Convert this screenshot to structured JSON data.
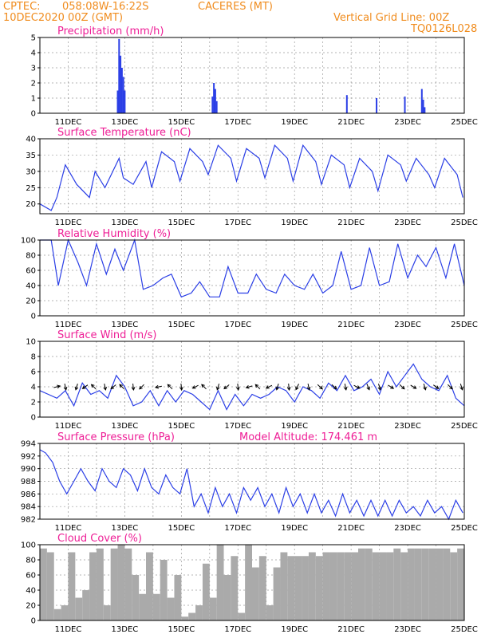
{
  "header": {
    "source": "CPTEC:",
    "coords": "058:08W-16:22S",
    "station": "CACERES (MT)",
    "date": "10DEC2020 00Z (GMT)",
    "grid_note": "Vertical Grid Line: 00Z",
    "code": "TQ0126L028"
  },
  "colors": {
    "header": "#f08c1e",
    "panel_title": "#ee1e96",
    "series": "#2b3fe6",
    "cloud": "#aaaaaa"
  },
  "chart_data": [
    {
      "id": "precip",
      "type": "bar",
      "title": "Precipitation (mm/h)",
      "ylim": [
        0,
        5
      ],
      "yticks": [
        0,
        1,
        2,
        3,
        4,
        5
      ],
      "x_labels": [
        "11DEC",
        "13DEC",
        "15DEC",
        "17DEC",
        "19DEC",
        "21DEC",
        "23DEC",
        "25DEC"
      ],
      "x_label_days": [
        11,
        13,
        15,
        17,
        19,
        21,
        23,
        25
      ],
      "x": [
        12.75,
        12.8,
        12.85,
        12.9,
        12.95,
        13.0,
        16.1,
        16.15,
        16.2,
        16.25,
        20.85,
        21.9,
        22.9,
        23.5,
        23.55,
        23.6
      ],
      "values": [
        1.5,
        4.9,
        3.8,
        3.0,
        2.4,
        1.5,
        1.1,
        2.0,
        1.6,
        0.8,
        1.2,
        1.0,
        1.1,
        1.6,
        0.9,
        0.4
      ]
    },
    {
      "id": "temp",
      "type": "line",
      "title": "Surface Temperature (nC)",
      "ylim": [
        17,
        40
      ],
      "yticks": [
        20,
        25,
        30,
        35,
        40
      ],
      "x_labels": [
        "11DEC",
        "13DEC",
        "15DEC",
        "17DEC",
        "19DEC",
        "21DEC",
        "23DEC",
        "25DEC"
      ],
      "x_label_days": [
        11,
        13,
        15,
        17,
        19,
        21,
        23,
        25
      ],
      "x": [
        10.0,
        10.4,
        10.6,
        10.9,
        11.3,
        11.75,
        11.95,
        12.3,
        12.8,
        12.95,
        13.3,
        13.75,
        13.95,
        14.3,
        14.75,
        14.95,
        15.3,
        15.75,
        15.95,
        16.3,
        16.75,
        16.95,
        17.3,
        17.75,
        17.95,
        18.3,
        18.75,
        18.95,
        19.3,
        19.75,
        19.95,
        20.3,
        20.75,
        20.95,
        21.3,
        21.75,
        21.95,
        22.3,
        22.75,
        22.95,
        23.3,
        23.75,
        23.95,
        24.3,
        24.75,
        24.95
      ],
      "values": [
        20,
        18,
        22,
        32,
        26,
        22,
        30,
        25,
        34,
        28,
        26,
        33,
        25,
        36,
        33,
        27,
        37,
        33,
        29,
        38,
        34,
        27,
        37,
        34,
        28,
        38,
        34,
        27,
        38,
        33,
        26,
        35,
        32,
        25,
        34,
        30,
        24,
        35,
        32,
        27,
        34,
        29,
        25,
        34,
        29,
        22
      ]
    },
    {
      "id": "rh",
      "type": "line",
      "title": "Relative Humidity (%)",
      "ylim": [
        0,
        100
      ],
      "yticks": [
        0,
        20,
        40,
        60,
        80,
        100
      ],
      "x_labels": [
        "11DEC",
        "13DEC",
        "15DEC",
        "17DEC",
        "19DEC",
        "21DEC",
        "23DEC",
        "25DEC"
      ],
      "x_label_days": [
        11,
        13,
        15,
        17,
        19,
        21,
        23,
        25
      ],
      "x": [
        10.0,
        10.4,
        10.65,
        11.0,
        11.35,
        11.65,
        12.0,
        12.35,
        12.65,
        12.95,
        13.35,
        13.65,
        14.0,
        14.35,
        14.65,
        15.0,
        15.35,
        15.65,
        16.0,
        16.35,
        16.65,
        17.0,
        17.35,
        17.65,
        18.0,
        18.35,
        18.65,
        19.0,
        19.35,
        19.65,
        20.0,
        20.35,
        20.65,
        21.0,
        21.35,
        21.65,
        22.0,
        22.35,
        22.65,
        23.0,
        23.35,
        23.65,
        24.0,
        24.35,
        24.65,
        25.0
      ],
      "values": [
        100,
        100,
        40,
        100,
        70,
        40,
        95,
        55,
        88,
        60,
        100,
        35,
        40,
        50,
        55,
        25,
        30,
        45,
        25,
        25,
        65,
        30,
        30,
        55,
        35,
        30,
        55,
        40,
        35,
        55,
        30,
        40,
        85,
        35,
        40,
        90,
        40,
        45,
        95,
        50,
        80,
        65,
        90,
        50,
        95,
        40
      ]
    },
    {
      "id": "wind",
      "type": "line",
      "title": "Surface Wind (m/s)",
      "ylim": [
        0,
        10
      ],
      "yticks": [
        0,
        2,
        4,
        6,
        8,
        10
      ],
      "x_labels": [
        "11DEC",
        "13DEC",
        "15DEC",
        "17DEC",
        "19DEC",
        "21DEC",
        "23DEC",
        "25DEC"
      ],
      "x_label_days": [
        11,
        13,
        15,
        17,
        19,
        21,
        23,
        25
      ],
      "x": [
        10.0,
        10.3,
        10.6,
        10.9,
        11.2,
        11.5,
        11.8,
        12.1,
        12.4,
        12.7,
        13.0,
        13.3,
        13.6,
        13.9,
        14.2,
        14.5,
        14.8,
        15.1,
        15.4,
        15.7,
        16.0,
        16.3,
        16.6,
        16.9,
        17.2,
        17.5,
        17.8,
        18.1,
        18.4,
        18.7,
        19.0,
        19.3,
        19.6,
        19.9,
        20.2,
        20.5,
        20.8,
        21.1,
        21.4,
        21.7,
        22.0,
        22.3,
        22.6,
        22.9,
        23.2,
        23.5,
        23.8,
        24.1,
        24.4,
        24.7,
        25.0
      ],
      "values": [
        3.5,
        3.0,
        2.5,
        3.5,
        1.5,
        4.5,
        3.0,
        3.5,
        2.5,
        5.5,
        4.0,
        1.5,
        2.0,
        3.5,
        1.5,
        3.5,
        2.0,
        3.5,
        3.0,
        2.0,
        1.0,
        3.5,
        1.0,
        3.0,
        1.5,
        3.0,
        2.5,
        3.0,
        4.0,
        3.5,
        2.0,
        4.0,
        3.5,
        2.5,
        4.5,
        3.5,
        5.5,
        3.5,
        4.0,
        5.0,
        3.0,
        6.0,
        4.0,
        5.5,
        7.0,
        5.0,
        4.0,
        3.5,
        5.5,
        2.5,
        1.5
      ],
      "arrows": [
        {
          "x": 10.6,
          "u": 1,
          "v": 0.25
        },
        {
          "x": 10.9,
          "u": 0.2,
          "v": -1
        },
        {
          "x": 11.3,
          "u": -0.3,
          "v": -1
        },
        {
          "x": 11.6,
          "u": -1,
          "v": -0.7
        },
        {
          "x": 11.9,
          "u": -0.7,
          "v": 0.7
        },
        {
          "x": 12.3,
          "u": 0.2,
          "v": -1
        },
        {
          "x": 12.6,
          "u": -1,
          "v": -0.8
        },
        {
          "x": 12.9,
          "u": -0.7,
          "v": 0.7
        },
        {
          "x": 13.3,
          "u": 0.1,
          "v": -1
        },
        {
          "x": 13.6,
          "u": -0.8,
          "v": -0.8
        },
        {
          "x": 14.2,
          "u": -1,
          "v": -0.2
        },
        {
          "x": 14.6,
          "u": -0.7,
          "v": 0.7
        },
        {
          "x": 15.0,
          "u": 0.1,
          "v": -1
        },
        {
          "x": 15.5,
          "u": -1,
          "v": -0.5
        },
        {
          "x": 15.8,
          "u": -0.7,
          "v": 0.7
        },
        {
          "x": 16.3,
          "u": -0.3,
          "v": -1
        },
        {
          "x": 16.6,
          "u": -1,
          "v": -0.8
        },
        {
          "x": 17.0,
          "u": 0.1,
          "v": -1
        },
        {
          "x": 17.4,
          "u": -1,
          "v": -0.3
        },
        {
          "x": 17.7,
          "u": -0.7,
          "v": 0.7
        },
        {
          "x": 18.1,
          "u": -1,
          "v": -0.5
        },
        {
          "x": 18.4,
          "u": -0.3,
          "v": -1
        },
        {
          "x": 18.8,
          "u": 0.1,
          "v": -1
        },
        {
          "x": 19.1,
          "u": -0.5,
          "v": -1
        },
        {
          "x": 19.5,
          "u": 0.2,
          "v": -1
        },
        {
          "x": 19.9,
          "u": 1,
          "v": -0.9
        },
        {
          "x": 20.4,
          "u": 1,
          "v": -0.9
        },
        {
          "x": 20.8,
          "u": 0.2,
          "v": -1
        },
        {
          "x": 21.2,
          "u": 1,
          "v": -0.5
        },
        {
          "x": 21.6,
          "u": 0.4,
          "v": -1
        },
        {
          "x": 22.0,
          "u": 0.3,
          "v": -1
        },
        {
          "x": 22.4,
          "u": 1,
          "v": -0.6
        },
        {
          "x": 22.8,
          "u": 1,
          "v": -0.9
        },
        {
          "x": 23.2,
          "u": 1,
          "v": -0.6
        },
        {
          "x": 23.6,
          "u": 0.3,
          "v": -1
        },
        {
          "x": 24.0,
          "u": 1,
          "v": -0.7
        },
        {
          "x": 24.5,
          "u": 1,
          "v": -0.9
        },
        {
          "x": 24.9,
          "u": 0.3,
          "v": -1
        }
      ]
    },
    {
      "id": "press",
      "type": "line",
      "title": "Surface Pressure (hPa)",
      "annotation": "Model Altitude: 174.461 m",
      "ylim": [
        982,
        994
      ],
      "yticks": [
        982,
        984,
        986,
        988,
        990,
        992,
        994
      ],
      "x_labels": [
        "11DEC",
        "13DEC",
        "15DEC",
        "17DEC",
        "19DEC",
        "21DEC",
        "23DEC",
        "25DEC"
      ],
      "x_label_days": [
        11,
        13,
        15,
        17,
        19,
        21,
        23,
        25
      ],
      "x": [
        10.0,
        10.2,
        10.45,
        10.7,
        10.95,
        11.2,
        11.45,
        11.7,
        11.95,
        12.2,
        12.45,
        12.7,
        12.95,
        13.2,
        13.45,
        13.7,
        13.95,
        14.2,
        14.45,
        14.7,
        14.95,
        15.2,
        15.45,
        15.7,
        15.95,
        16.2,
        16.45,
        16.7,
        16.95,
        17.2,
        17.45,
        17.7,
        17.95,
        18.2,
        18.45,
        18.7,
        18.95,
        19.2,
        19.45,
        19.7,
        19.95,
        20.2,
        20.45,
        20.7,
        20.95,
        21.2,
        21.45,
        21.7,
        21.95,
        22.2,
        22.45,
        22.7,
        22.95,
        23.2,
        23.45,
        23.7,
        23.95,
        24.2,
        24.45,
        24.7,
        24.95
      ],
      "values": [
        993,
        992.5,
        991,
        988,
        986,
        988,
        990,
        988,
        986.5,
        990,
        988,
        987,
        990,
        989,
        986.5,
        990,
        987,
        986,
        989,
        987,
        986,
        990,
        984,
        986,
        983,
        987,
        984,
        986,
        983,
        987,
        985,
        987,
        984,
        986,
        983,
        987,
        984,
        986,
        983,
        986,
        983,
        985,
        982.5,
        986,
        983,
        985,
        982.5,
        985,
        982.5,
        985,
        982.5,
        985,
        983,
        984,
        982.5,
        985,
        983,
        984,
        982,
        985,
        983
      ]
    },
    {
      "id": "cloud",
      "type": "bar",
      "title": "Cloud Cover (%)",
      "ylim": [
        0,
        100
      ],
      "yticks": [
        0,
        20,
        40,
        60,
        80,
        100
      ],
      "x_labels": [
        "11DEC",
        "13DEC",
        "15DEC",
        "17DEC",
        "19DEC",
        "21DEC",
        "23DEC",
        "25DEC"
      ],
      "x_label_days": [
        11,
        13,
        15,
        17,
        19,
        21,
        23,
        25
      ],
      "x": [
        10.0,
        10.25,
        10.5,
        10.75,
        11.0,
        11.25,
        11.5,
        11.75,
        12.0,
        12.25,
        12.5,
        12.75,
        13.0,
        13.25,
        13.5,
        13.75,
        14.0,
        14.25,
        14.5,
        14.75,
        15.0,
        15.25,
        15.5,
        15.75,
        16.0,
        16.25,
        16.5,
        16.75,
        17.0,
        17.25,
        17.5,
        17.75,
        18.0,
        18.25,
        18.5,
        18.75,
        19.0,
        19.25,
        19.5,
        19.75,
        20.0,
        20.25,
        20.5,
        20.75,
        21.0,
        21.25,
        21.5,
        21.75,
        22.0,
        22.25,
        22.5,
        22.75,
        23.0,
        23.25,
        23.5,
        23.75,
        24.0,
        24.25,
        24.5,
        24.75
      ],
      "values": [
        95,
        90,
        15,
        20,
        90,
        30,
        40,
        90,
        95,
        20,
        95,
        100,
        95,
        60,
        35,
        90,
        35,
        80,
        30,
        60,
        5,
        10,
        20,
        75,
        30,
        100,
        60,
        85,
        10,
        100,
        70,
        85,
        20,
        70,
        90,
        85,
        85,
        85,
        90,
        85,
        90,
        90,
        90,
        90,
        90,
        95,
        95,
        90,
        90,
        90,
        95,
        90,
        95,
        95,
        95,
        95,
        95,
        95,
        90,
        95
      ]
    }
  ]
}
